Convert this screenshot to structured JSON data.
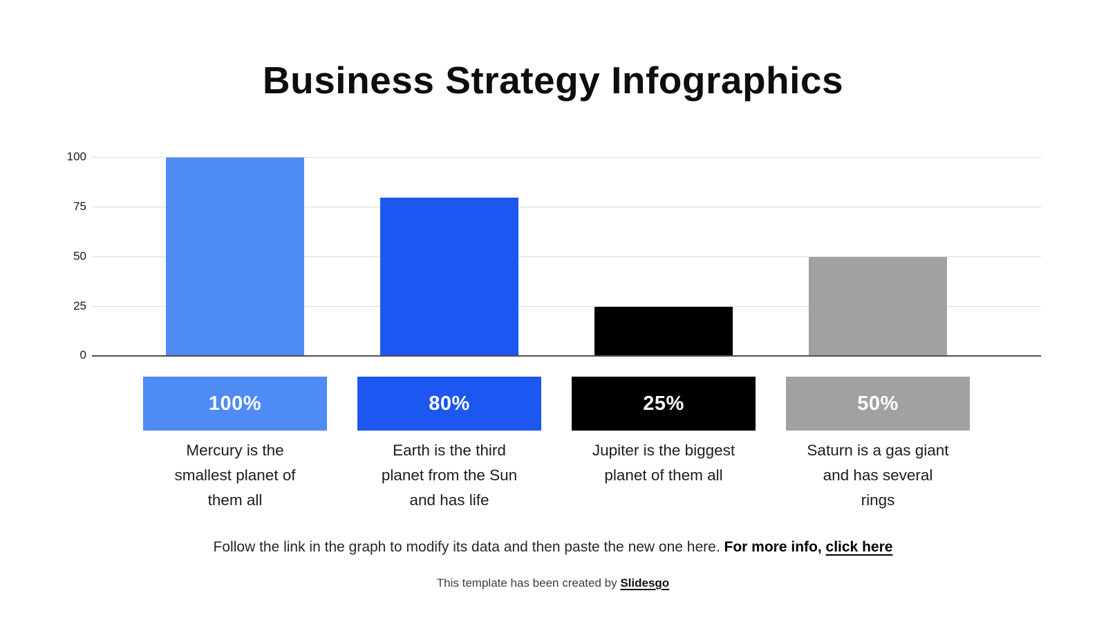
{
  "title": "Business Strategy Infographics",
  "chart_data": {
    "type": "bar",
    "categories": [
      "Mercury",
      "Earth",
      "Jupiter",
      "Saturn"
    ],
    "values": [
      100,
      80,
      25,
      50
    ],
    "colors": [
      "#4e8bf3",
      "#1b57f0",
      "#000000",
      "#a1a1a1"
    ],
    "yticks": [
      0,
      25,
      50,
      75,
      100
    ],
    "ylim": [
      0,
      100
    ],
    "grid": true,
    "legend_position": "none",
    "xlabel": "",
    "ylabel": ""
  },
  "columns": [
    {
      "value_label": "100%",
      "color": "#4e8bf3",
      "description": "Mercury is the smallest planet of them all"
    },
    {
      "value_label": "80%",
      "color": "#1b57f0",
      "description": "Earth is the third planet from the Sun and has life"
    },
    {
      "value_label": "25%",
      "color": "#000000",
      "description": "Jupiter is the biggest planet of them all"
    },
    {
      "value_label": "50%",
      "color": "#a1a1a1",
      "description": "Saturn is a gas giant and has several rings"
    }
  ],
  "footer": {
    "note": "Follow the link in the graph to modify its data and then paste the new one here.",
    "more_info_prefix": "For more info,",
    "link_text": "click here"
  },
  "credit": {
    "prefix": "This template has been created by",
    "brand_link": "Slidesgo"
  }
}
